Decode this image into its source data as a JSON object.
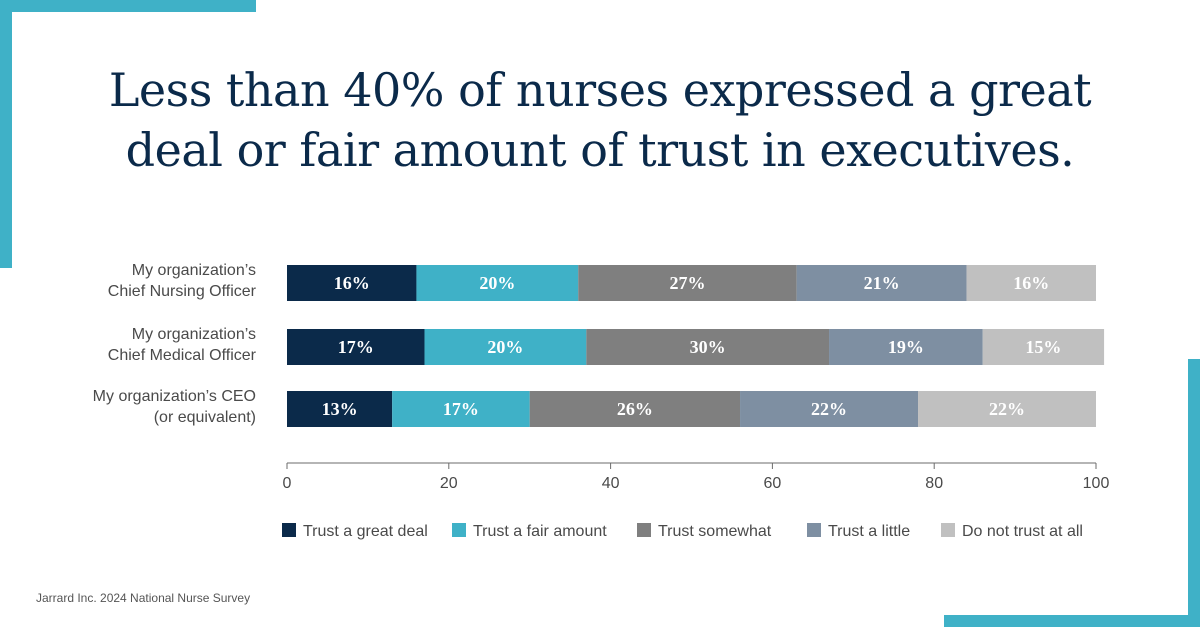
{
  "title_lines": [
    "Less than 40% of nurses expressed a great",
    "deal or fair amount of trust in executives."
  ],
  "source": "Jarrard Inc. 2024 National Nurse Survey",
  "colors": {
    "accent": "#3fb1c7",
    "title": "#0b2a4a",
    "series": [
      "#0b2a4a",
      "#3fb1c7",
      "#7f7f7f",
      "#7e8fa2",
      "#c0c0c0"
    ]
  },
  "chart_data": {
    "type": "bar",
    "orientation": "horizontal",
    "stacked": true,
    "categories": [
      [
        "My organization’s",
        "Chief Nursing Officer"
      ],
      [
        "My organization’s",
        "Chief Medical Officer"
      ],
      [
        "My organization’s CEO",
        "(or equivalent)"
      ]
    ],
    "series": [
      {
        "name": "Trust a great deal",
        "values": [
          16,
          17,
          13
        ],
        "labels": [
          "16%",
          "17%",
          "13%"
        ]
      },
      {
        "name": "Trust a fair amount",
        "values": [
          20,
          20,
          17
        ],
        "labels": [
          "20%",
          "20%",
          "17%"
        ]
      },
      {
        "name": "Trust somewhat",
        "values": [
          27,
          30,
          26
        ],
        "labels": [
          "27%",
          "30%",
          "26%"
        ]
      },
      {
        "name": "Trust a little",
        "values": [
          21,
          19,
          22
        ],
        "labels": [
          "21%",
          "19%",
          "22%"
        ]
      },
      {
        "name": "Do not trust at all",
        "values": [
          16,
          15,
          22
        ],
        "labels": [
          "16%",
          "15%",
          "22%"
        ]
      }
    ],
    "xlim": [
      0,
      100
    ],
    "xticks": [
      "0",
      "20",
      "40",
      "60",
      "80",
      "100"
    ],
    "legend": "bottom",
    "grid": false
  }
}
